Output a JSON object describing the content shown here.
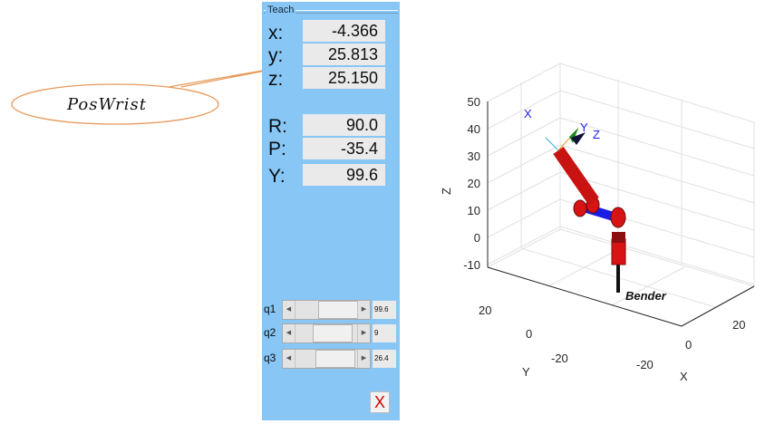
{
  "panel": {
    "title": "Teach",
    "position": {
      "x_label": "x:",
      "x": "-4.366",
      "y_label": "y:",
      "y": "25.813",
      "z_label": "z:",
      "z": "25.150"
    },
    "orientation": {
      "r_label": "R:",
      "r": "90.0",
      "p_label": "P:",
      "p": "-35.4",
      "yw_label": "Y:",
      "yw": "99.6"
    },
    "joints": [
      {
        "label": "q1",
        "value": "99.6",
        "slider_fraction": 0.72
      },
      {
        "label": "q2",
        "value": "9",
        "slider_fraction": 0.55
      },
      {
        "label": "q3",
        "value": "26.4",
        "slider_fraction": 0.62
      }
    ],
    "close_label": "X"
  },
  "callout": {
    "label": "PosWrist"
  },
  "plot": {
    "z_axis_label": "Z",
    "z_ticks": [
      "50",
      "40",
      "30",
      "20",
      "10",
      "0",
      "-10"
    ],
    "y_axis_label": "Y",
    "y_ticks": [
      "20",
      "0",
      "-20"
    ],
    "x_axis_label": "X",
    "x_ticks": [
      "-20",
      "0",
      "20"
    ],
    "robot_name": "Bender",
    "frame_labels": {
      "x": "X",
      "y": "Y",
      "z": "Z"
    },
    "colors": {
      "link": "#d81313",
      "joint_blue": "#1b1be6",
      "joint_dark": "#7a0c0c",
      "base": "#111111"
    }
  }
}
